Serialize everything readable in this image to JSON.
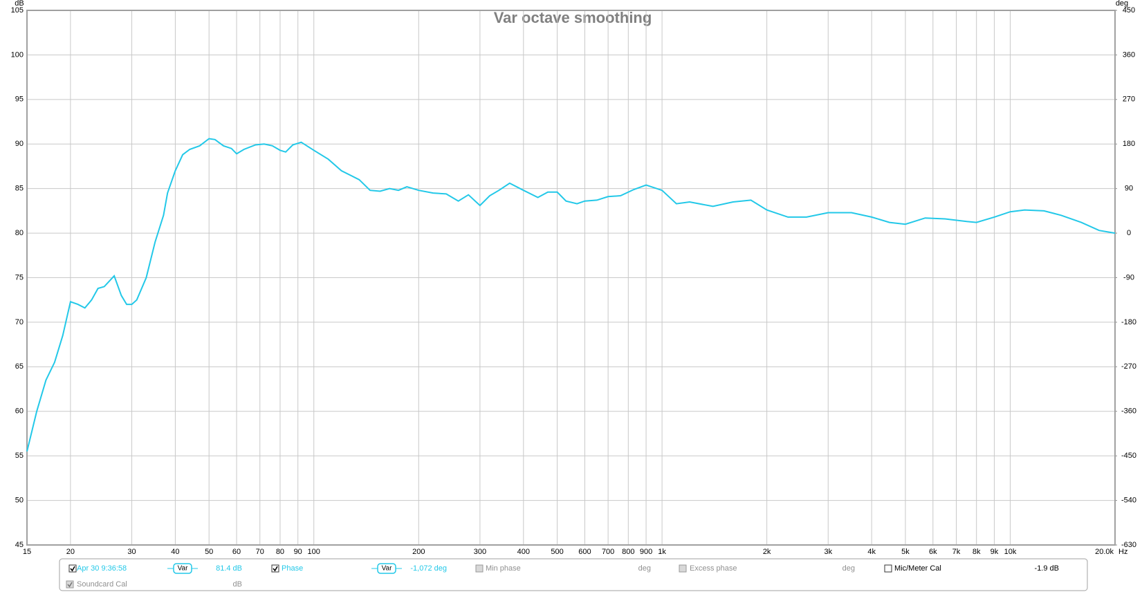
{
  "chart_data": {
    "type": "line",
    "title": "Var octave smoothing",
    "y_unit": "dB",
    "y2_unit": "deg",
    "x_unit": "Hz",
    "xscale": "log",
    "grid": true,
    "xlim": [
      15,
      20000
    ],
    "ylim": [
      45,
      105
    ],
    "y2lim": [
      -630,
      450
    ],
    "xticks": [
      15,
      20,
      30,
      40,
      50,
      60,
      70,
      80,
      90,
      100,
      200,
      300,
      400,
      500,
      600,
      700,
      800,
      900,
      {
        "value": 1000,
        "label": "1k"
      },
      {
        "value": 2000,
        "label": "2k"
      },
      {
        "value": 3000,
        "label": "3k"
      },
      {
        "value": 4000,
        "label": "4k"
      },
      {
        "value": 5000,
        "label": "5k"
      },
      {
        "value": 6000,
        "label": "6k"
      },
      {
        "value": 7000,
        "label": "7k"
      },
      {
        "value": 8000,
        "label": "8k"
      },
      {
        "value": 9000,
        "label": "9k"
      },
      {
        "value": 10000,
        "label": "10k"
      },
      {
        "value": 20000,
        "label": "20.0k"
      }
    ],
    "yticks": [
      45,
      50,
      55,
      60,
      65,
      70,
      75,
      80,
      85,
      90,
      95,
      100,
      105
    ],
    "y2ticks": [
      -630,
      -540,
      -450,
      -360,
      -270,
      -180,
      -90,
      0,
      90,
      180,
      270,
      360,
      450
    ],
    "x": [
      15,
      16,
      17,
      18,
      19,
      20,
      21,
      22,
      23,
      24,
      25,
      26.7,
      28,
      29,
      30,
      31,
      33,
      35,
      37,
      38,
      40,
      42,
      44,
      47,
      50,
      52,
      55,
      58,
      60,
      63,
      68,
      72,
      76,
      80,
      83,
      87,
      92,
      100,
      110,
      120,
      135,
      145,
      155,
      165,
      175,
      185,
      200,
      220,
      240,
      260,
      278,
      300,
      320,
      340,
      365,
      400,
      440,
      470,
      500,
      530,
      570,
      600,
      650,
      700,
      760,
      830,
      900,
      1000,
      1100,
      1200,
      1400,
      1600,
      1800,
      2000,
      2300,
      2600,
      3000,
      3500,
      4000,
      4500,
      5000,
      5700,
      6500,
      7500,
      8000,
      9000,
      10000,
      11000,
      12500,
      14000,
      16000,
      18000,
      20000
    ],
    "series": [
      {
        "name": "Apr 30 9:36:58",
        "color": "#22c8e8",
        "values": [
          55.5,
          60,
          63.5,
          65.5,
          68.5,
          72.3,
          72,
          71.6,
          72.5,
          73.8,
          74,
          75.2,
          73,
          72,
          72,
          72.5,
          75,
          79,
          82,
          84.5,
          87,
          88.8,
          89.4,
          89.8,
          90.6,
          90.5,
          89.8,
          89.5,
          88.9,
          89.4,
          89.9,
          90,
          89.8,
          89.3,
          89.1,
          89.9,
          90.2,
          89.3,
          88.3,
          87,
          86,
          84.8,
          84.7,
          85,
          84.8,
          85.2,
          84.8,
          84.5,
          84.4,
          83.6,
          84.3,
          83.1,
          84.2,
          84.8,
          85.6,
          84.8,
          84,
          84.6,
          84.6,
          83.6,
          83.3,
          83.6,
          83.7,
          84.1,
          84.2,
          84.9,
          85.4,
          84.8,
          83.3,
          83.5,
          83,
          83.5,
          83.7,
          82.6,
          81.8,
          81.8,
          82.3,
          82.3,
          81.8,
          81.2,
          81,
          81.7,
          81.6,
          81.3,
          81.2,
          81.8,
          82.4,
          82.6,
          82.5,
          82,
          81.2,
          80.3,
          80
        ]
      }
    ]
  },
  "legend": {
    "items": [
      {
        "label": "Apr 30 9:36:58",
        "checked": true,
        "enabled": true,
        "smoothing": "Var",
        "value": "81.4 dB"
      },
      {
        "label": "Phase",
        "checked": true,
        "enabled": true,
        "smoothing": "Var",
        "value": "-1,072 deg"
      },
      {
        "label": "Min phase",
        "checked": false,
        "enabled": false,
        "value": "deg"
      },
      {
        "label": "Excess phase",
        "checked": false,
        "enabled": false,
        "value": "deg"
      },
      {
        "label": "Mic/Meter Cal",
        "checked": false,
        "enabled": true,
        "value": "-1.9 dB"
      },
      {
        "label": "Soundcard Cal",
        "checked": true,
        "enabled": false,
        "value": "dB"
      }
    ]
  }
}
